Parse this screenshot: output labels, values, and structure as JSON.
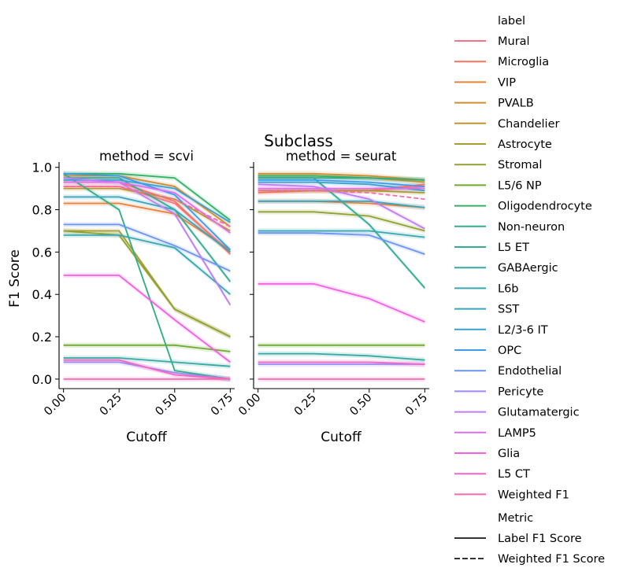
{
  "chart_data": {
    "type": "line",
    "suptitle": "Subclass",
    "panels": [
      {
        "title": "method = scvi"
      },
      {
        "title": "method = seurat"
      }
    ],
    "xlabel": "Cutoff",
    "ylabel": "F1 Score",
    "x": [
      0.0,
      0.25,
      0.5,
      0.75
    ],
    "xticks": [
      "0.00",
      "0.25",
      "0.50",
      "0.75"
    ],
    "yticks": [
      "0.0",
      "0.2",
      "0.4",
      "0.6",
      "0.8",
      "1.0"
    ],
    "xlim": [
      -0.02,
      0.77
    ],
    "ylim": [
      -0.045,
      1.025
    ],
    "legend": {
      "placement": "right",
      "hue_title": "label",
      "style_title": "Metric",
      "style_entries": [
        "Label F1 Score",
        "Weighted F1 Score"
      ]
    },
    "series": [
      {
        "name": "Mural",
        "color": "#f77189",
        "scvi": [
          0.91,
          0.91,
          0.83,
          0.6
        ],
        "seurat": [
          0.89,
          0.89,
          0.89,
          0.91
        ]
      },
      {
        "name": "Microglia",
        "color": "#f6745d",
        "scvi": [
          0.93,
          0.93,
          0.84,
          0.59
        ],
        "seurat": [
          0.88,
          0.89,
          0.89,
          0.92
        ]
      },
      {
        "name": "VIP",
        "color": "#e6823b",
        "scvi": [
          0.83,
          0.83,
          0.78,
          0.61
        ],
        "seurat": [
          0.84,
          0.84,
          0.83,
          0.81
        ]
      },
      {
        "name": "PVALB",
        "color": "#d08c31",
        "scvi": [
          0.96,
          0.96,
          0.91,
          0.72
        ],
        "seurat": [
          0.97,
          0.97,
          0.96,
          0.94
        ]
      },
      {
        "name": "Chandelier",
        "color": "#bb9631",
        "scvi": [
          0.9,
          0.9,
          0.85,
          0.7
        ],
        "seurat": [
          0.96,
          0.96,
          0.95,
          0.93
        ]
      },
      {
        "name": "Astrocyte",
        "color": "#a69c31",
        "scvi": [
          0.7,
          0.7,
          0.33,
          0.2
        ],
        "seurat": [
          0.89,
          0.89,
          0.89,
          0.88
        ]
      },
      {
        "name": "Stromal",
        "color": "#90a231",
        "scvi": [
          0.7,
          0.68,
          0.33,
          0.2
        ],
        "seurat": [
          0.79,
          0.79,
          0.77,
          0.7
        ]
      },
      {
        "name": "L5/6 NP",
        "color": "#6fab31",
        "scvi": [
          0.16,
          0.16,
          0.16,
          0.13
        ],
        "seurat": [
          0.16,
          0.16,
          0.16,
          0.16
        ]
      },
      {
        "name": "Oligodendrocyte",
        "color": "#32b166",
        "scvi": [
          0.97,
          0.97,
          0.95,
          0.75
        ],
        "seurat": [
          0.96,
          0.96,
          0.95,
          0.94
        ]
      },
      {
        "name": "Non-neuron",
        "color": "#34ad85",
        "scvi": [
          0.97,
          0.8,
          0.04,
          0.0
        ],
        "seurat": [
          0.95,
          0.95,
          0.95,
          0.94
        ]
      },
      {
        "name": "L5 ET",
        "color": "#35ab96",
        "scvi": [
          0.95,
          0.95,
          0.8,
          0.46
        ],
        "seurat": [
          0.95,
          0.95,
          0.73,
          0.43
        ]
      },
      {
        "name": "GABAergic",
        "color": "#36a9a3",
        "scvi": [
          0.1,
          0.1,
          0.08,
          0.06
        ],
        "seurat": [
          0.12,
          0.12,
          0.11,
          0.09
        ]
      },
      {
        "name": "L6b",
        "color": "#37a7b0",
        "scvi": [
          0.68,
          0.68,
          0.62,
          0.4
        ],
        "seurat": [
          0.7,
          0.7,
          0.7,
          0.67
        ]
      },
      {
        "name": "SST",
        "color": "#38a4be",
        "scvi": [
          0.86,
          0.86,
          0.8,
          0.6
        ],
        "seurat": [
          0.84,
          0.84,
          0.84,
          0.81
        ]
      },
      {
        "name": "L2/3-6 IT",
        "color": "#3aa1cf",
        "scvi": [
          0.94,
          0.94,
          0.9,
          0.74
        ],
        "seurat": [
          0.93,
          0.93,
          0.92,
          0.89
        ]
      },
      {
        "name": "OPC",
        "color": "#3c9ceb",
        "scvi": [
          0.97,
          0.96,
          0.87,
          0.61
        ],
        "seurat": [
          0.94,
          0.94,
          0.93,
          0.91
        ]
      },
      {
        "name": "Endothelial",
        "color": "#6b94f4",
        "scvi": [
          0.73,
          0.73,
          0.63,
          0.51
        ],
        "seurat": [
          0.69,
          0.69,
          0.68,
          0.59
        ]
      },
      {
        "name": "Pericyte",
        "color": "#9a8af4",
        "scvi": [
          0.08,
          0.08,
          0.03,
          0.0
        ],
        "seurat": [
          0.07,
          0.07,
          0.07,
          0.07
        ]
      },
      {
        "name": "Glutamatergic",
        "color": "#bd7df4",
        "scvi": [
          0.95,
          0.93,
          0.78,
          0.35
        ],
        "seurat": [
          0.92,
          0.91,
          0.85,
          0.71
        ]
      },
      {
        "name": "LAMP5",
        "color": "#dd6ef4",
        "scvi": [
          0.93,
          0.93,
          0.88,
          0.69
        ],
        "seurat": [
          0.9,
          0.9,
          0.9,
          0.9
        ]
      },
      {
        "name": "Glia",
        "color": "#f45fe4",
        "scvi": [
          0.49,
          0.49,
          0.28,
          0.08
        ],
        "seurat": [
          0.45,
          0.45,
          0.38,
          0.27
        ]
      },
      {
        "name": "L5 CT",
        "color": "#f566c2",
        "scvi": [
          0.09,
          0.09,
          0.02,
          0.0
        ],
        "seurat": [
          0.08,
          0.08,
          0.08,
          0.07
        ]
      },
      {
        "name": "Weighted F1",
        "color": "#f66bb0",
        "scvi": [
          0.0,
          0.0,
          0.0,
          0.0
        ],
        "seurat": [
          0.0,
          0.0,
          0.0,
          0.0
        ]
      }
    ],
    "weighted_f1_score": {
      "color": "#f66bb0",
      "scvi": [
        0.91,
        0.91,
        0.85,
        0.72
      ],
      "seurat": [
        0.89,
        0.89,
        0.88,
        0.85
      ]
    }
  }
}
